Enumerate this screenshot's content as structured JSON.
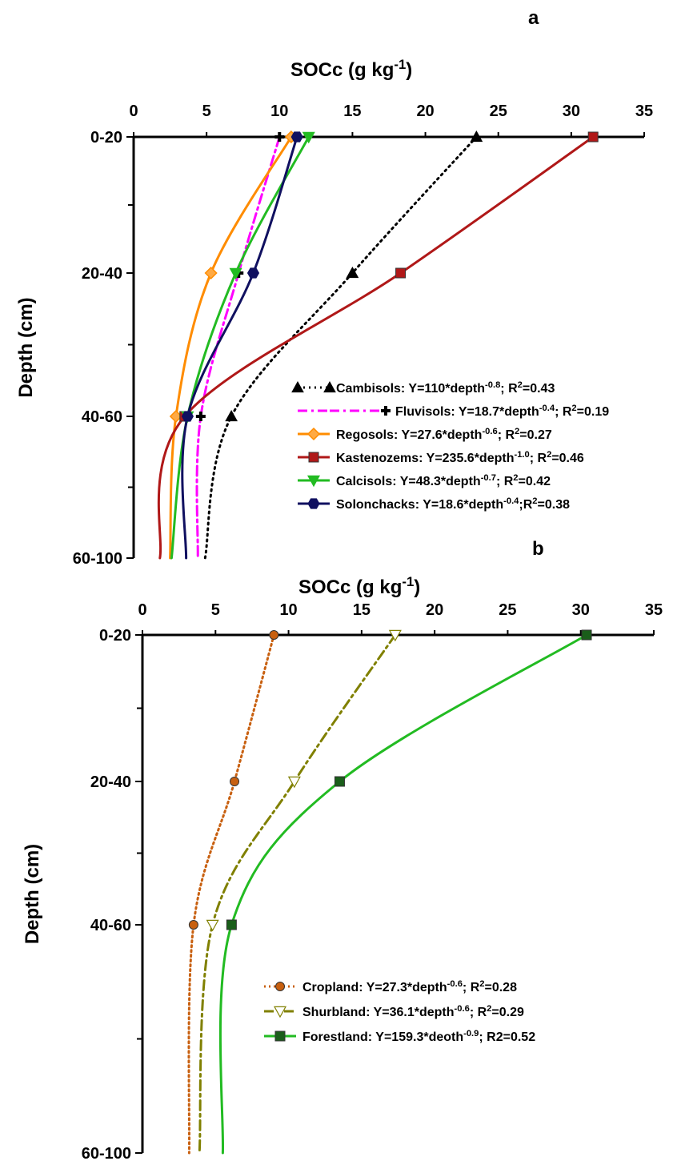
{
  "chart_data": [
    {
      "panel": "a",
      "type": "line",
      "xlabel": "SOCc (g kg-1)",
      "ylabel": "Depth  (cm)",
      "xlim": [
        0,
        35
      ],
      "x_ticks": [
        "0",
        "5",
        "10",
        "15",
        "20",
        "25",
        "30",
        "35"
      ],
      "y_categories": [
        "0-20",
        "20-40",
        "40-60",
        "60-100"
      ],
      "series": [
        {
          "name": "Cambisols",
          "equation": "Y=110*depth-0.8; R2=0.43",
          "values": [
            23.5,
            15.0,
            6.7,
            null
          ],
          "fit_end": 4.9,
          "color": "#000000",
          "dash": "2,5",
          "marker": "triangle-up",
          "marker_fill": "#000000"
        },
        {
          "name": "Fluvisols",
          "equation": "Y=18.7*depth-0.4; R2=0.19",
          "values": [
            10.0,
            7.2,
            4.6,
            null
          ],
          "fit_end": 4.4,
          "color": "#ff00ff",
          "dash": "12,5,3,5",
          "marker": "plus",
          "marker_fill": "#000000"
        },
        {
          "name": "Regosols",
          "equation": "Y=27.6*depth-0.6; R2=0.27",
          "values": [
            10.8,
            5.3,
            2.9,
            null
          ],
          "fit_end": 2.5,
          "color": "#ff8c00",
          "dash": "",
          "marker": "diamond",
          "marker_fill": "#ffaa44"
        },
        {
          "name": "Kastenozems",
          "equation": "Y=235.6*depth-1.0; R2=0.46",
          "values": [
            31.5,
            18.3,
            3.5,
            null
          ],
          "fit_end": 1.8,
          "color": "#b01818",
          "dash": "",
          "marker": "square",
          "marker_fill": "#b01818"
        },
        {
          "name": "Calcisols",
          "equation": "Y=48.3*depth-0.7; R2=0.42",
          "values": [
            12.0,
            7.0,
            3.7,
            null
          ],
          "fit_end": 2.6,
          "color": "#22bb22",
          "dash": "",
          "marker": "triangle-down",
          "marker_fill": "#22bb22"
        },
        {
          "name": "Solonchacks",
          "equation": "Y=18.6*depth-0.4;R2=0.38",
          "values": [
            11.2,
            8.2,
            3.7,
            null
          ],
          "fit_end": 3.6,
          "color": "#101060",
          "dash": "",
          "marker": "hexagon",
          "marker_fill": "#101060"
        }
      ]
    },
    {
      "panel": "b",
      "type": "line",
      "xlabel": "SOCc (g kg-1)",
      "ylabel": "Depth (cm)",
      "xlim": [
        0,
        35
      ],
      "x_ticks": [
        "0",
        "5",
        "10",
        "15",
        "20",
        "25",
        "30",
        "35"
      ],
      "y_categories": [
        "0-20",
        "20-40",
        "40-60",
        "60-100"
      ],
      "series": [
        {
          "name": "Cropland",
          "equation": "Y=27.3*depth-0.6; R2=0.28",
          "values": [
            9.0,
            6.3,
            3.5,
            null
          ],
          "fit_end": 3.2,
          "color": "#c86010",
          "dash": "2,4",
          "marker": "circle",
          "marker_fill": "#c86010"
        },
        {
          "name": "Shurbland",
          "equation": "Y=36.1*depth-0.6; R2=0.29",
          "values": [
            17.3,
            10.4,
            4.8,
            null
          ],
          "fit_end": 3.9,
          "color": "#808000",
          "dash": "12,5,3,5",
          "marker": "triangle-down",
          "marker_fill": "#ffffff"
        },
        {
          "name": "Forestland",
          "equation": "Y=159.3*deoth-0.9; R2=0.52",
          "values": [
            30.4,
            13.5,
            6.1,
            null
          ],
          "fit_end": 5.5,
          "color": "#22bb22",
          "dash": "",
          "marker": "square",
          "marker_fill": "#1a5e1a"
        }
      ]
    }
  ]
}
